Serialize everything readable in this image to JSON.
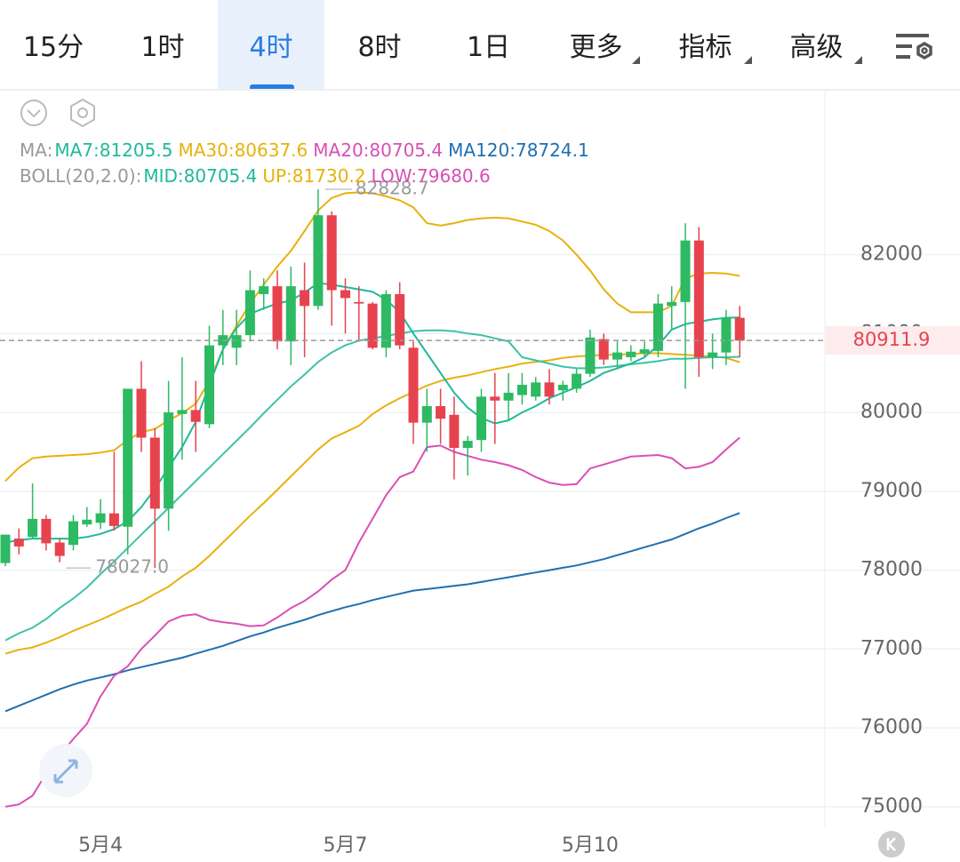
{
  "tabs": [
    {
      "label": "15分"
    },
    {
      "label": "1时"
    },
    {
      "label": "4时",
      "selected": true
    },
    {
      "label": "8时"
    },
    {
      "label": "1日"
    },
    {
      "label": "更多",
      "dropdown": true
    },
    {
      "label": "指标",
      "dropdown": true
    },
    {
      "label": "高级",
      "dropdown": true
    }
  ],
  "chart_data": {
    "type": "candlestick",
    "ma_legend": {
      "label": "MA:",
      "items": [
        {
          "text": "MA7:81205.5",
          "color": "#1fb99a"
        },
        {
          "text": "MA30:80637.6",
          "color": "#e8b10e"
        },
        {
          "text": "MA20:80705.4",
          "color": "#d94fb5"
        },
        {
          "text": "MA120:78724.1",
          "color": "#1f6fb0"
        }
      ]
    },
    "boll_legend": {
      "label": "BOLL(20,2.0):",
      "items": [
        {
          "text": "MID:80705.4",
          "color": "#1fb99a"
        },
        {
          "text": "UP:81730.2",
          "color": "#e8b10e"
        },
        {
          "text": "LOW:79680.6",
          "color": "#d94fb5"
        }
      ]
    },
    "categories": [
      null,
      null,
      null,
      null,
      null,
      null,
      null,
      "5月4",
      null,
      null,
      null,
      null,
      null,
      null,
      null,
      null,
      null,
      null,
      null,
      null,
      null,
      null,
      null,
      null,
      null,
      "5月7",
      null,
      null,
      null,
      null,
      null,
      null,
      null,
      null,
      null,
      null,
      null,
      null,
      null,
      null,
      null,
      null,
      null,
      "5月10",
      null,
      null,
      null,
      null,
      null,
      null,
      null,
      null,
      null,
      null,
      null
    ],
    "open": [
      78090,
      78400,
      78420,
      78650,
      78350,
      78320,
      78580,
      78600,
      78720,
      78550,
      80300,
      79680,
      78780,
      79980,
      80030,
      79850,
      80850,
      80820,
      80980,
      81500,
      81600,
      80900,
      81550,
      81350,
      82500,
      81550,
      81400,
      81380,
      80820,
      81500,
      80820,
      79870,
      80080,
      79970,
      79550,
      79650,
      80200,
      80150,
      80220,
      80200,
      80380,
      80280,
      80300,
      80490,
      80930,
      80670,
      80700,
      80750,
      80780,
      81350,
      81400,
      82180,
      80700,
      80760,
      81200
    ],
    "high": [
      78450,
      78530,
      79100,
      78700,
      78400,
      78700,
      78800,
      78900,
      79500,
      80300,
      80650,
      79800,
      80400,
      80700,
      80400,
      81100,
      81300,
      81300,
      81800,
      81700,
      81800,
      81850,
      81900,
      82828.7,
      82550,
      81700,
      81600,
      81400,
      81550,
      81650,
      80900,
      80300,
      80300,
      80200,
      79700,
      80300,
      80500,
      80500,
      80500,
      80450,
      80550,
      80400,
      80550,
      81050,
      81000,
      80900,
      80850,
      80900,
      81500,
      81600,
      82400,
      82350,
      81000,
      81300,
      81350
    ],
    "low": [
      78050,
      78200,
      78400,
      78250,
      78100,
      78250,
      78550,
      78520,
      78500,
      78200,
      79500,
      78027,
      78500,
      79400,
      79500,
      79800,
      80600,
      80600,
      80900,
      81300,
      80800,
      80600,
      80700,
      81300,
      81100,
      81000,
      80900,
      80800,
      80700,
      80800,
      79600,
      79500,
      79600,
      79150,
      79200,
      79500,
      79600,
      79900,
      80100,
      80150,
      80100,
      80150,
      80250,
      80450,
      80600,
      80550,
      80650,
      80700,
      80700,
      81050,
      80300,
      80450,
      80550,
      80600,
      80700
    ],
    "close": [
      78450,
      78300,
      78650,
      78340,
      78180,
      78620,
      78640,
      78720,
      78560,
      80300,
      79680,
      78780,
      80000,
      80030,
      79880,
      80850,
      80980,
      80980,
      81550,
      81600,
      80900,
      81600,
      81350,
      82500,
      81550,
      81450,
      81380,
      80820,
      81500,
      80850,
      79870,
      80080,
      79920,
      79550,
      79640,
      80200,
      80150,
      80250,
      80350,
      80380,
      80200,
      80350,
      80490,
      80950,
      80670,
      80760,
      80770,
      80800,
      81380,
      81400,
      82180,
      80700,
      80760,
      81200,
      80911.9
    ],
    "up_color": "#2dba63",
    "down_color": "#e6434e",
    "lines": [
      {
        "color": "#1f6fb0",
        "values": [
          76210,
          76280,
          76350,
          76420,
          76490,
          76550,
          76600,
          76640,
          76680,
          76730,
          76770,
          76810,
          76850,
          76890,
          76940,
          76990,
          77040,
          77100,
          77160,
          77210,
          77270,
          77320,
          77370,
          77430,
          77480,
          77530,
          77570,
          77620,
          77660,
          77700,
          77740,
          77760,
          77780,
          77800,
          77820,
          77850,
          77880,
          77910,
          77940,
          77970,
          78000,
          78030,
          78060,
          78100,
          78140,
          78190,
          78240,
          78290,
          78340,
          78390,
          78460,
          78530,
          78590,
          78660,
          78724.1
        ]
      },
      {
        "color": "#e8b10e",
        "values": [
          79130,
          79300,
          79420,
          79440,
          79450,
          79460,
          79470,
          79490,
          79520,
          79650,
          79750,
          79790,
          79900,
          79990,
          80110,
          80400,
          80800,
          81100,
          81380,
          81620,
          81850,
          82050,
          82300,
          82560,
          82720,
          82780,
          82790,
          82780,
          82740,
          82690,
          82600,
          82400,
          82370,
          82400,
          82440,
          82460,
          82470,
          82460,
          82420,
          82380,
          82300,
          82180,
          82000,
          81800,
          81560,
          81380,
          81270,
          81270,
          81270,
          81350,
          81700,
          81760,
          81770,
          81760,
          81730.2
        ]
      },
      {
        "color": "#d94fb5",
        "values": [
          75000,
          75030,
          75140,
          75420,
          75650,
          75860,
          76050,
          76400,
          76660,
          76780,
          77000,
          77170,
          77350,
          77420,
          77440,
          77370,
          77340,
          77320,
          77290,
          77300,
          77400,
          77520,
          77610,
          77730,
          77880,
          78000,
          78350,
          78650,
          78950,
          79180,
          79250,
          79560,
          79580,
          79500,
          79450,
          79400,
          79370,
          79330,
          79270,
          79180,
          79110,
          79080,
          79090,
          79290,
          79340,
          79390,
          79440,
          79450,
          79460,
          79420,
          79290,
          79310,
          79370,
          79530,
          79680.6
        ]
      },
      {
        "color": "#e8b10e",
        "values": [
          76940,
          76990,
          77020,
          77080,
          77150,
          77230,
          77300,
          77370,
          77450,
          77530,
          77600,
          77700,
          77790,
          77920,
          78030,
          78180,
          78350,
          78520,
          78690,
          78850,
          79020,
          79190,
          79360,
          79530,
          79670,
          79750,
          79830,
          79980,
          80090,
          80180,
          80260,
          80340,
          80400,
          80440,
          80470,
          80510,
          80550,
          80580,
          80620,
          80640,
          80660,
          80690,
          80710,
          80720,
          80730,
          80730,
          80740,
          80750,
          80750,
          80740,
          80730,
          80720,
          80710,
          80690,
          80637.6
        ]
      },
      {
        "color": "#3cc2a8",
        "values": [
          77110,
          77200,
          77270,
          77380,
          77520,
          77640,
          77780,
          77950,
          78110,
          78280,
          78450,
          78620,
          78790,
          78960,
          79130,
          79300,
          79470,
          79640,
          79810,
          79990,
          80160,
          80330,
          80480,
          80640,
          80760,
          80850,
          80910,
          80940,
          80970,
          81000,
          81030,
          81040,
          81040,
          81030,
          81000,
          80980,
          80940,
          80900,
          80700,
          80660,
          80620,
          80580,
          80560,
          80560,
          80570,
          80590,
          80610,
          80630,
          80650,
          80680,
          80680,
          80690,
          80700,
          80700,
          80705.4
        ]
      },
      {
        "color": "#1fb99a",
        "values": [
          78350,
          78380,
          78400,
          78400,
          78400,
          78400,
          78420,
          78460,
          78520,
          78620,
          78800,
          79030,
          79300,
          79560,
          79880,
          80350,
          80800,
          81070,
          81250,
          81320,
          81380,
          81420,
          81520,
          81640,
          81620,
          81590,
          81560,
          81530,
          81430,
          81270,
          81000,
          80750,
          80500,
          80250,
          80060,
          79930,
          79860,
          79900,
          80000,
          80080,
          80180,
          80250,
          80320,
          80400,
          80500,
          80560,
          80620,
          80700,
          80850,
          81050,
          81120,
          81150,
          81180,
          81200,
          81205.5
        ]
      }
    ],
    "ylim": [
      74750,
      84080
    ],
    "yticks": [
      75000,
      76000,
      77000,
      78000,
      79000,
      80000,
      81000,
      82000
    ],
    "grid": true,
    "annotations": {
      "max": 82828.7,
      "min": {
        "value": 78027,
        "label": "78027.0"
      }
    },
    "current_price": 80911.9
  }
}
